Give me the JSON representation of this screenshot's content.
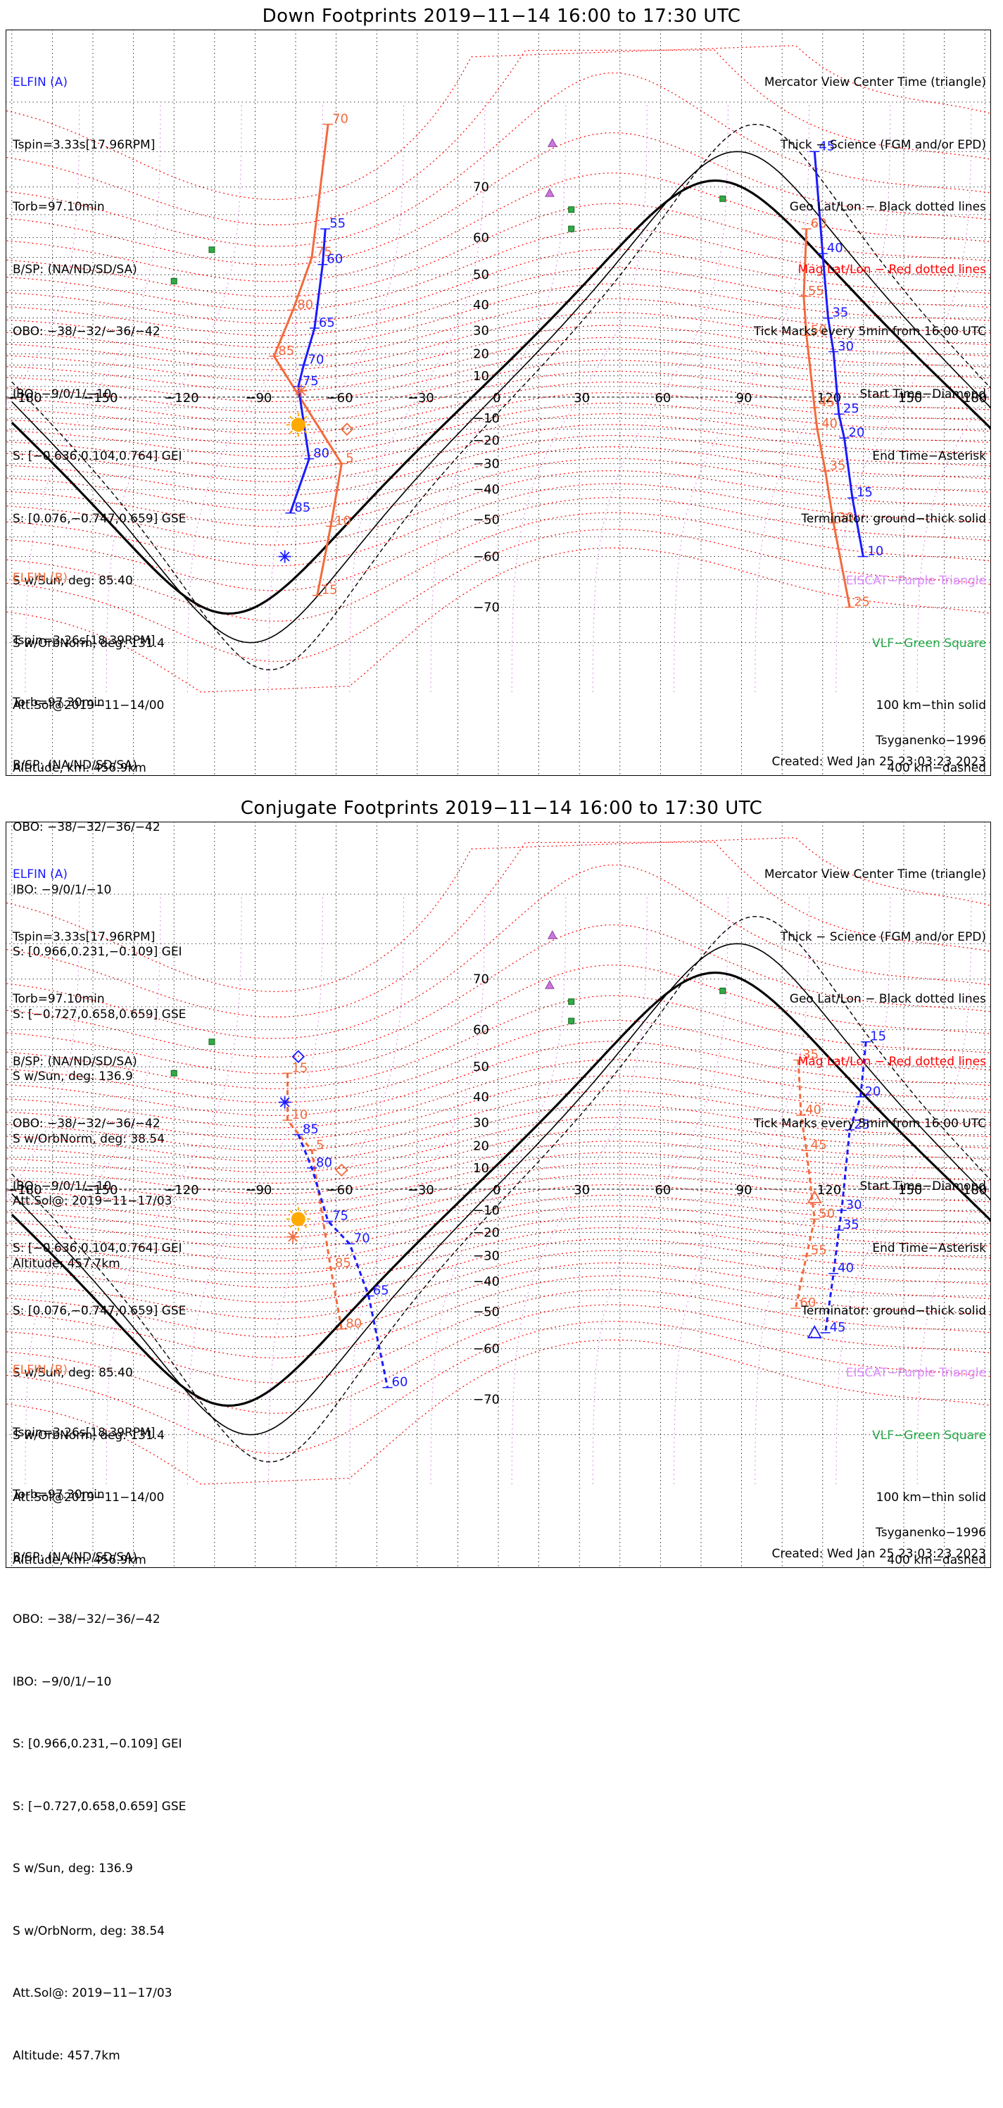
{
  "panels": [
    {
      "id": "down",
      "title": "Down Footprints 2019−11−14 16:00 to 17:30 UTC",
      "elfin_a": {
        "label": "ELFIN (A)",
        "lines": [
          "Tspin=3.33s[17.96RPM]",
          "Torb=97.10min",
          "B/SP: (NA/ND/SD/SA)",
          "OBO: −38/−32/−36/−42",
          "IBO: −9/0/1/−10",
          "S: [−0.636,0.104,0.764] GEI",
          "S: [0.076,−0.747,0.659] GSE",
          "S w/Sun, deg: 85.40",
          "S w/OrbNorm, deg: 131.4",
          "Att.Sol@2019−11−14/00",
          "Altitude, km: 456.9km"
        ]
      },
      "elfin_b": {
        "label": "ELFIN (B)",
        "lines": [
          "Tspin=3.26s[18.39RPM]",
          "Torb=97.30min",
          "B/SP: (NA/ND/SD/SA)",
          "OBO: −38/−32/−36/−42",
          "IBO: −9/0/1/−10",
          "S: [0.966,0.231,−0.109] GEI",
          "S: [−0.727,0.658,0.659] GSE",
          "S w/Sun, deg: 136.9",
          "S w/OrbNorm, deg: 38.54",
          "Att.Sol@: 2019−11−17/03",
          "Altitude: 457.7km"
        ]
      },
      "legend": [
        {
          "text": "Mercator View Center Time (triangle)",
          "color": "#000000"
        },
        {
          "text": "Thick − Science (FGM and/or EPD)",
          "color": "#000000"
        },
        {
          "text": "Geo Lat/Lon − Black dotted lines",
          "color": "#000000"
        },
        {
          "text": "Mag Lat/Lon − Red dotted lines",
          "color": "#ff0000"
        },
        {
          "text": "Tick Marks every 5min from 16:00 UTC",
          "color": "#000000"
        },
        {
          "text": "Start Time−Diamond",
          "color": "#000000"
        },
        {
          "text": "End Time−Asterisk",
          "color": "#000000"
        },
        {
          "text": "Terminator: ground−thick solid",
          "color": "#000000"
        },
        {
          "text": "EISCAT−Purple Triangle",
          "color": "#dd88ff"
        },
        {
          "text": "VLF−Green Square",
          "color": "#22aa44"
        },
        {
          "text": "100 km−thin solid",
          "color": "#000000"
        },
        {
          "text": "400 km−dashed",
          "color": "#000000"
        }
      ],
      "model": "Tsyganenko−1996",
      "created": "Created: Wed Jan 25 23:03:23 2023"
    },
    {
      "id": "conjugate",
      "title": "Conjugate Footprints 2019−11−14 16:00 to 17:30 UTC",
      "elfin_a": {
        "label": "ELFIN (A)",
        "lines": [
          "Tspin=3.33s[17.96RPM]",
          "Torb=97.10min",
          "B/SP: (NA/ND/SD/SA)",
          "OBO: −38/−32/−36/−42",
          "IBO: −9/0/1/−10",
          "S: [−0.636,0.104,0.764] GEI",
          "S: [0.076,−0.747,0.659] GSE",
          "S w/Sun, deg: 85.40",
          "S w/OrbNorm, deg: 131.4",
          "Att.Sol@2019−11−14/00",
          "Altitude, km: 456.9km"
        ]
      },
      "elfin_b": {
        "label": "ELFIN (B)",
        "lines": [
          "Tspin=3.26s[18.39RPM]",
          "Torb=97.30min",
          "B/SP: (NA/ND/SD/SA)",
          "OBO: −38/−32/−36/−42",
          "IBO: −9/0/1/−10",
          "S: [0.966,0.231,−0.109] GEI",
          "S: [−0.727,0.658,0.659] GSE",
          "S w/Sun, deg: 136.9",
          "S w/OrbNorm, deg: 38.54",
          "Att.Sol@: 2019−11−17/03",
          "Altitude: 457.7km"
        ]
      },
      "legend": [
        {
          "text": "Mercator View Center Time (triangle)",
          "color": "#000000"
        },
        {
          "text": "Thick − Science (FGM and/or EPD)",
          "color": "#000000"
        },
        {
          "text": "Geo Lat/Lon − Black dotted lines",
          "color": "#000000"
        },
        {
          "text": "Mag Lat/Lon − Red dotted lines",
          "color": "#ff0000"
        },
        {
          "text": "Tick Marks every 5min from 16:00 UTC",
          "color": "#000000"
        },
        {
          "text": "Start Time−Diamond",
          "color": "#000000"
        },
        {
          "text": "End Time−Asterisk",
          "color": "#000000"
        },
        {
          "text": "Terminator: ground−thick solid",
          "color": "#000000"
        },
        {
          "text": "EISCAT−Purple Triangle",
          "color": "#dd88ff"
        },
        {
          "text": "VLF−Green Square",
          "color": "#22aa44"
        },
        {
          "text": "100 km−thin solid",
          "color": "#000000"
        },
        {
          "text": "400 km−dashed",
          "color": "#000000"
        }
      ],
      "model": "Tsyganenko−1996",
      "created": "Created: Wed Jan 25 23:03:23 2023"
    }
  ],
  "map_axes": {
    "longitude_ticks": [
      -180,
      -150,
      -120,
      -90,
      -60,
      -30,
      0,
      30,
      60,
      90,
      120,
      150,
      180
    ],
    "latitude_ticks": [
      70,
      60,
      50,
      40,
      30,
      20,
      10,
      0,
      -10,
      -20,
      -30,
      -40,
      -50,
      -60,
      -70
    ],
    "projection": "Mercator"
  },
  "colors": {
    "elfin_a": "#1a1aff",
    "elfin_b": "#f26a3c",
    "mag_grid": "#ff0000",
    "geo_grid": "#000000",
    "eiscat": "#cc77dd",
    "vlf": "#33aa44",
    "sun": "#ffaa00"
  },
  "tracks": {
    "down": {
      "a_west_ticks": [
        {
          "label": "55",
          "lon": -64,
          "lat": 62
        },
        {
          "label": "60",
          "lon": -65,
          "lat": 53
        },
        {
          "label": "65",
          "lon": -68,
          "lat": 31
        },
        {
          "label": "70",
          "lon": -72,
          "lat": 15
        },
        {
          "label": "75",
          "lon": -74,
          "lat": 5
        },
        {
          "label": "80",
          "lon": -70,
          "lat": -28
        },
        {
          "label": "85",
          "lon": -77,
          "lat": -48
        }
      ],
      "b_west_ticks": [
        {
          "label": "70",
          "lon": -63,
          "lat": 78
        },
        {
          "label": "75",
          "lon": -69,
          "lat": 55
        },
        {
          "label": "80",
          "lon": -76,
          "lat": 38
        },
        {
          "label": "85",
          "lon": -83,
          "lat": 19
        },
        {
          "label": "5",
          "lon": -58,
          "lat": -30
        },
        {
          "label": "10",
          "lon": -62,
          "lat": -52
        },
        {
          "label": "15",
          "lon": -67,
          "lat": -68
        }
      ],
      "a_east_ticks": [
        {
          "label": "45",
          "lon": 117,
          "lat": 75
        },
        {
          "label": "40",
          "lon": 120,
          "lat": 56
        },
        {
          "label": "35",
          "lon": 122,
          "lat": 35
        },
        {
          "label": "30",
          "lon": 124,
          "lat": 21
        },
        {
          "label": "25",
          "lon": 126,
          "lat": -8
        },
        {
          "label": "20",
          "lon": 128,
          "lat": -19
        },
        {
          "label": "15",
          "lon": 131,
          "lat": -43
        },
        {
          "label": "10",
          "lon": 135,
          "lat": -60
        }
      ],
      "b_east_ticks": [
        {
          "label": "60",
          "lon": 114,
          "lat": 62
        },
        {
          "label": "55",
          "lon": 113,
          "lat": 43
        },
        {
          "label": "50",
          "lon": 114,
          "lat": 28
        },
        {
          "label": "45",
          "lon": 117,
          "lat": -5
        },
        {
          "label": "40",
          "lon": 118,
          "lat": -15
        },
        {
          "label": "35",
          "lon": 121,
          "lat": -33
        },
        {
          "label": "30",
          "lon": 124,
          "lat": -51
        },
        {
          "label": "25",
          "lon": 130,
          "lat": -70
        }
      ]
    },
    "conjugate": {
      "a_west_ticks": [
        {
          "label": "85",
          "lon": -74,
          "lat": 25
        },
        {
          "label": "80",
          "lon": -69,
          "lat": 10
        },
        {
          "label": "75",
          "lon": -63,
          "lat": -15
        },
        {
          "label": "70",
          "lon": -55,
          "lat": -25
        },
        {
          "label": "65",
          "lon": -48,
          "lat": -45
        },
        {
          "label": "60",
          "lon": -41,
          "lat": -68
        }
      ],
      "b_west_ticks": [
        {
          "label": "15",
          "lon": -78,
          "lat": 48
        },
        {
          "label": "10",
          "lon": -78,
          "lat": 31
        },
        {
          "label": "5",
          "lon": -69,
          "lat": 18
        },
        {
          "label": "85",
          "lon": -62,
          "lat": -35
        },
        {
          "label": "80",
          "lon": -58,
          "lat": -55
        }
      ],
      "a_east_ticks": [
        {
          "label": "15",
          "lon": 136,
          "lat": 57
        },
        {
          "label": "20",
          "lon": 134,
          "lat": 40
        },
        {
          "label": "25",
          "lon": 130,
          "lat": 27
        },
        {
          "label": "30",
          "lon": 127,
          "lat": -10
        },
        {
          "label": "35",
          "lon": 126,
          "lat": -19
        },
        {
          "label": "40",
          "lon": 124,
          "lat": -37
        },
        {
          "label": "45",
          "lon": 121,
          "lat": -56
        }
      ],
      "b_east_ticks": [
        {
          "label": "35",
          "lon": 111,
          "lat": 52
        },
        {
          "label": "40",
          "lon": 112,
          "lat": 33
        },
        {
          "label": "45",
          "lon": 114,
          "lat": 18
        },
        {
          "label": "50",
          "lon": 117,
          "lat": -14
        },
        {
          "label": "55",
          "lon": 114,
          "lat": -30
        },
        {
          "label": "60",
          "lon": 110,
          "lat": -49
        }
      ]
    }
  }
}
